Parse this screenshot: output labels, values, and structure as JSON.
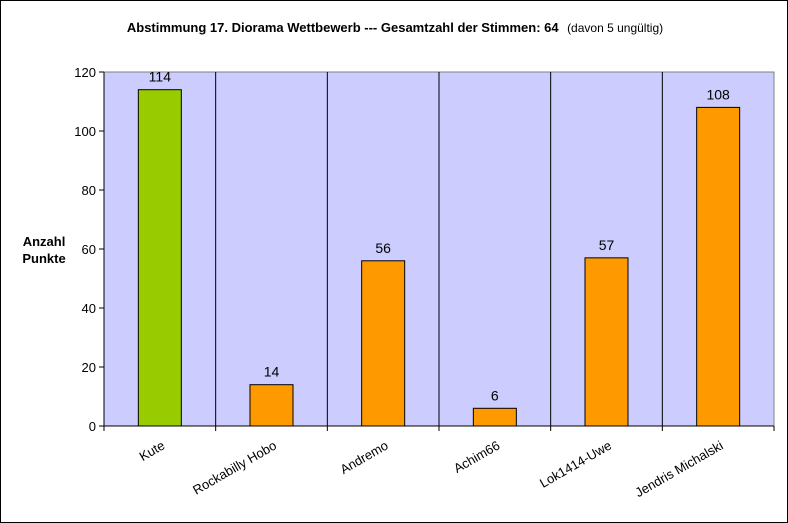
{
  "chart_data": {
    "type": "bar",
    "title_bold": "Abstimmung 17. Diorama Wettbewerb --- Gesamtzahl der Stimmen: 64",
    "title_suffix": "(davon 5 ungültig)",
    "ylabel_lines": [
      "Anzahl",
      "Punkte"
    ],
    "xlabel": "",
    "categories": [
      "Kute",
      "Rockabilly Hobo",
      "Andremo",
      "Achim66",
      "Lok1414-Uwe",
      "Jendris Michalski"
    ],
    "values": [
      114,
      14,
      56,
      6,
      57,
      108
    ],
    "data_labels": [
      "114",
      "14",
      "56",
      "6",
      "57",
      "108"
    ],
    "bar_colors": [
      "#99cc00",
      "#ff9900",
      "#ff9900",
      "#ff9900",
      "#ff9900",
      "#ff9900"
    ],
    "ylim": [
      0,
      120
    ],
    "yticks": [
      0,
      20,
      40,
      60,
      80,
      100,
      120
    ],
    "grid": "vertical separators between categories",
    "legend": "none",
    "plot_background": "#ccccff"
  }
}
